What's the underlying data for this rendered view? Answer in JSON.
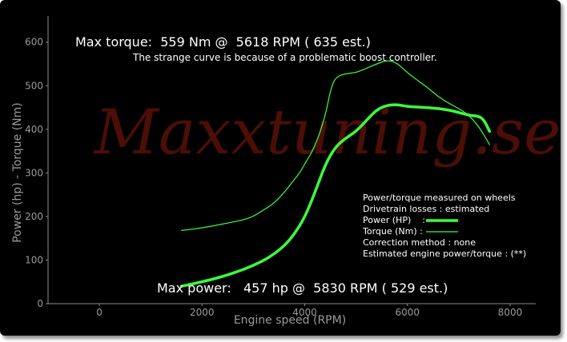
{
  "chart_data": {
    "type": "line",
    "xlabel": "Engine speed (RPM)",
    "ylabel": "Power (hp) - Torque (Nm)",
    "xlim": [
      -1000,
      8500
    ],
    "ylim": [
      0,
      660
    ],
    "xticks": [
      0,
      2000,
      4000,
      6000,
      8000
    ],
    "yticks": [
      0,
      100,
      200,
      300,
      400,
      500,
      600
    ],
    "grid": false,
    "legend_position": "bottom-right",
    "series": [
      {
        "name": "Power (HP)",
        "color": "#3cff3c",
        "line": "thick",
        "x": [
          1600,
          2000,
          2400,
          2800,
          3000,
          3300,
          3600,
          3800,
          4000,
          4200,
          4400,
          4600,
          4800,
          5000,
          5200,
          5400,
          5600,
          5800,
          6000,
          6400,
          6800,
          7200,
          7400,
          7500,
          7600
        ],
        "values": [
          40,
          50,
          62,
          78,
          88,
          105,
          132,
          160,
          198,
          255,
          320,
          360,
          380,
          395,
          420,
          445,
          455,
          457,
          452,
          450,
          445,
          432,
          430,
          420,
          395
        ]
      },
      {
        "name": "Torque (Nm)",
        "color": "#3cff3c",
        "line": "thin",
        "x": [
          1600,
          1900,
          2200,
          2500,
          2800,
          3000,
          3200,
          3400,
          3600,
          3800,
          3900,
          4000,
          4200,
          4400,
          4500,
          4600,
          4800,
          5000,
          5200,
          5400,
          5618,
          5800,
          6000,
          6200,
          6400,
          6600,
          6800,
          7000,
          7200,
          7400,
          7600
        ],
        "values": [
          168,
          172,
          178,
          185,
          192,
          200,
          215,
          230,
          255,
          285,
          300,
          320,
          360,
          430,
          490,
          520,
          528,
          530,
          540,
          550,
          559,
          552,
          530,
          512,
          495,
          475,
          460,
          448,
          432,
          405,
          365
        ]
      }
    ],
    "annotations": {
      "max_torque": "Max torque:  559 Nm @  5618 RPM ( 635 est.)",
      "note": "The strange curve is because of a problematic boost controller.",
      "max_power": "Max power:   457 hp @  5830 RPM ( 529 est.)"
    },
    "legend_text": {
      "line1": "Power/torque measured on wheels",
      "line2": "Drivetrain losses : estimated",
      "power": "Power (HP)    :",
      "torque": "Torque (Nm) :",
      "correction": "Correction method : none",
      "estimated": "Estimated engine power/torque : (**)"
    },
    "watermark": "Maxxtuning.se"
  }
}
